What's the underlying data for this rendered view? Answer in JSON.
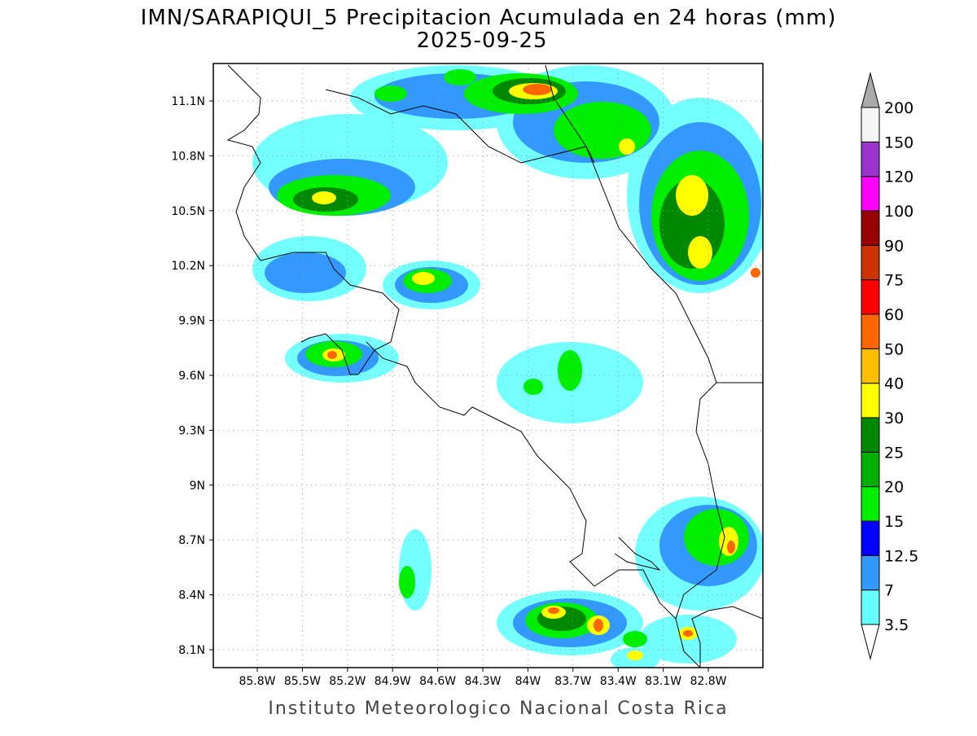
{
  "header": {
    "title": "IMN/SARAPIQUI_5 Precipitacion Acumulada en 24 horas (mm)",
    "date": "2025-09-25"
  },
  "map": {
    "lat_ticks": [
      {
        "value": 11.1,
        "label": "11.1N"
      },
      {
        "value": 10.8,
        "label": "10.8N"
      },
      {
        "value": 10.5,
        "label": "10.5N"
      },
      {
        "value": 10.2,
        "label": "10.2N"
      },
      {
        "value": 9.9,
        "label": "9.9N"
      },
      {
        "value": 9.6,
        "label": "9.6N"
      },
      {
        "value": 9.3,
        "label": "9.3N"
      },
      {
        "value": 9,
        "label": "9N"
      },
      {
        "value": 8.7,
        "label": "8.7N"
      },
      {
        "value": 8.4,
        "label": "8.4N"
      },
      {
        "value": 8.1,
        "label": "8.1N"
      }
    ],
    "lon_ticks": [
      {
        "value": -85.8,
        "label": "85.8W"
      },
      {
        "value": -85.5,
        "label": "85.5W"
      },
      {
        "value": -85.2,
        "label": "85.2W"
      },
      {
        "value": -84.9,
        "label": "84.9W"
      },
      {
        "value": -84.6,
        "label": "84.6W"
      },
      {
        "value": -84.3,
        "label": "84.3W"
      },
      {
        "value": -84,
        "label": "84W"
      },
      {
        "value": -83.7,
        "label": "83.7W"
      },
      {
        "value": -83.4,
        "label": "83.4W"
      },
      {
        "value": -83.1,
        "label": "83.1W"
      },
      {
        "value": -82.8,
        "label": "82.8W"
      }
    ]
  },
  "colorbar": {
    "levels": [
      3.5,
      7,
      12.5,
      15,
      20,
      25,
      30,
      40,
      50,
      60,
      75,
      90,
      100,
      120,
      150,
      200
    ],
    "colors": [
      "#66ffff",
      "#3399ff",
      "#0000ff",
      "#00ee00",
      "#00b000",
      "#008800",
      "#ffff00",
      "#ffbf00",
      "#ff6600",
      "#ff0000",
      "#cc3300",
      "#990000",
      "#ff00ff",
      "#9933cc",
      "#f5f5f5"
    ],
    "under_color": "#ffffff",
    "over_color": "#aaaaaa"
  },
  "footer": "Instituto Meteorologico Nacional Costa Rica"
}
